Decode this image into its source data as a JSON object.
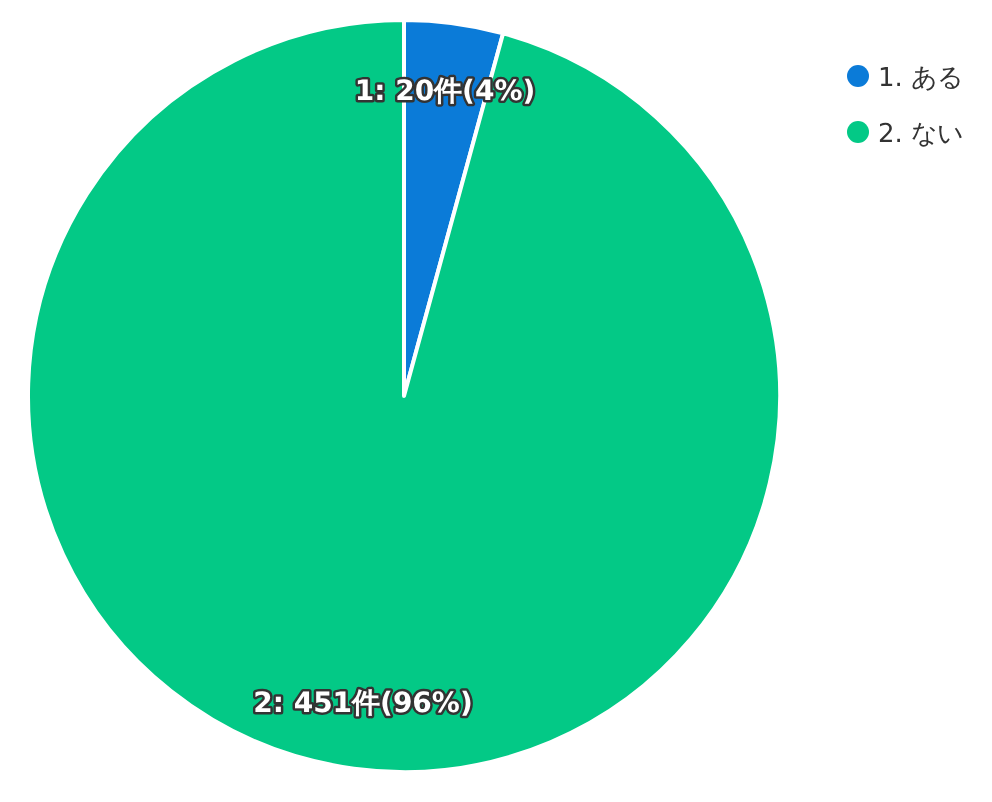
{
  "chart_data": {
    "type": "pie",
    "categories": [
      "1. ある",
      "2. ない"
    ],
    "values": [
      20,
      451
    ],
    "colors": [
      "#0b7bd8",
      "#03c986"
    ],
    "value_labels": [
      "1: 20件(4%)",
      "2: 451件(96%)"
    ],
    "legend": "top right"
  }
}
